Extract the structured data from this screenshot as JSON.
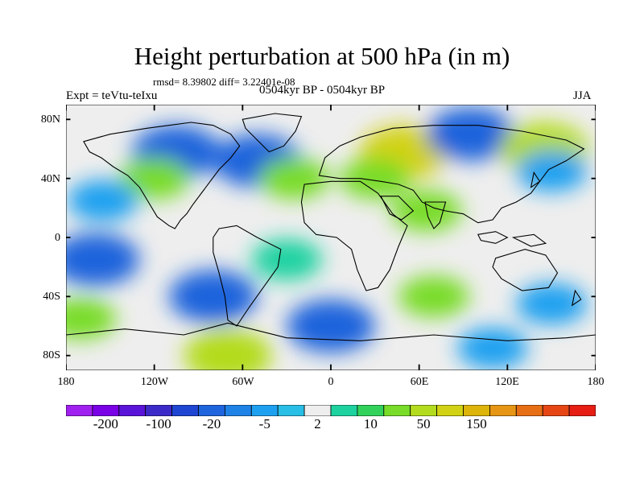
{
  "title": "Height perturbation at 500 hPa (in m)",
  "stats": "rmsd= 8.39802 diff= 3.22401e-08",
  "experiment": "Expt = teVtu-teIxu",
  "period": "0504kyr BP - 0504kyr BP",
  "season": "JJA",
  "lat_labels": [
    "80N",
    "40N",
    "0",
    "40S",
    "80S"
  ],
  "lon_labels": [
    "180",
    "120W",
    "60W",
    "0",
    "60E",
    "120E",
    "180"
  ],
  "colorbar": {
    "colors": [
      "#a020f0",
      "#7a00e6",
      "#5a14d8",
      "#3c2ac8",
      "#1e46d2",
      "#1e64dc",
      "#1e82e6",
      "#1ea0f0",
      "#28bee6",
      "#eeeeee",
      "#1ed2a0",
      "#32d25a",
      "#78dc28",
      "#b4dc1e",
      "#d2d214",
      "#dcb40a",
      "#e69614",
      "#e66e14",
      "#e64614",
      "#e61e14"
    ],
    "labels": [
      "-200",
      "-100",
      "-20",
      "-5",
      "2",
      "10",
      "50",
      "150"
    ],
    "label_boundaries": [
      2,
      4,
      6,
      8,
      10,
      12,
      14,
      16
    ]
  },
  "chart_data": {
    "type": "heatmap",
    "title": "Height perturbation at 500 hPa (in m)",
    "variable": "500 hPa geopotential height perturbation",
    "units": "m",
    "x_range": [
      -180,
      180
    ],
    "y_range": [
      -90,
      90
    ],
    "x_ticks": [
      -180,
      -120,
      -60,
      0,
      60,
      120,
      180
    ],
    "y_ticks": [
      80,
      40,
      0,
      -40,
      -80
    ],
    "rmsd": 8.39802,
    "diff": 3.22401e-08,
    "anomalies": [
      {
        "lon": -105,
        "lat": 58,
        "value": -20
      },
      {
        "lon": -50,
        "lat": 52,
        "value": -20
      },
      {
        "lon": -25,
        "lat": 40,
        "value": 10
      },
      {
        "lon": -120,
        "lat": 40,
        "value": 10
      },
      {
        "lon": 50,
        "lat": 58,
        "value": 50
      },
      {
        "lon": 95,
        "lat": 70,
        "value": -20
      },
      {
        "lon": 145,
        "lat": 60,
        "value": 20
      },
      {
        "lon": 150,
        "lat": 45,
        "value": -5
      },
      {
        "lon": 30,
        "lat": 40,
        "value": 10
      },
      {
        "lon": 65,
        "lat": 18,
        "value": 10
      },
      {
        "lon": -155,
        "lat": 25,
        "value": -5
      },
      {
        "lon": -160,
        "lat": -15,
        "value": -20
      },
      {
        "lon": -80,
        "lat": -40,
        "value": -20
      },
      {
        "lon": 0,
        "lat": -60,
        "value": -20
      },
      {
        "lon": 70,
        "lat": -40,
        "value": 10
      },
      {
        "lon": -170,
        "lat": -55,
        "value": 10
      },
      {
        "lon": -70,
        "lat": -80,
        "value": 20
      },
      {
        "lon": 150,
        "lat": -45,
        "value": -5
      },
      {
        "lon": 110,
        "lat": -75,
        "value": -5
      },
      {
        "lon": -30,
        "lat": -15,
        "value": 2
      }
    ]
  }
}
